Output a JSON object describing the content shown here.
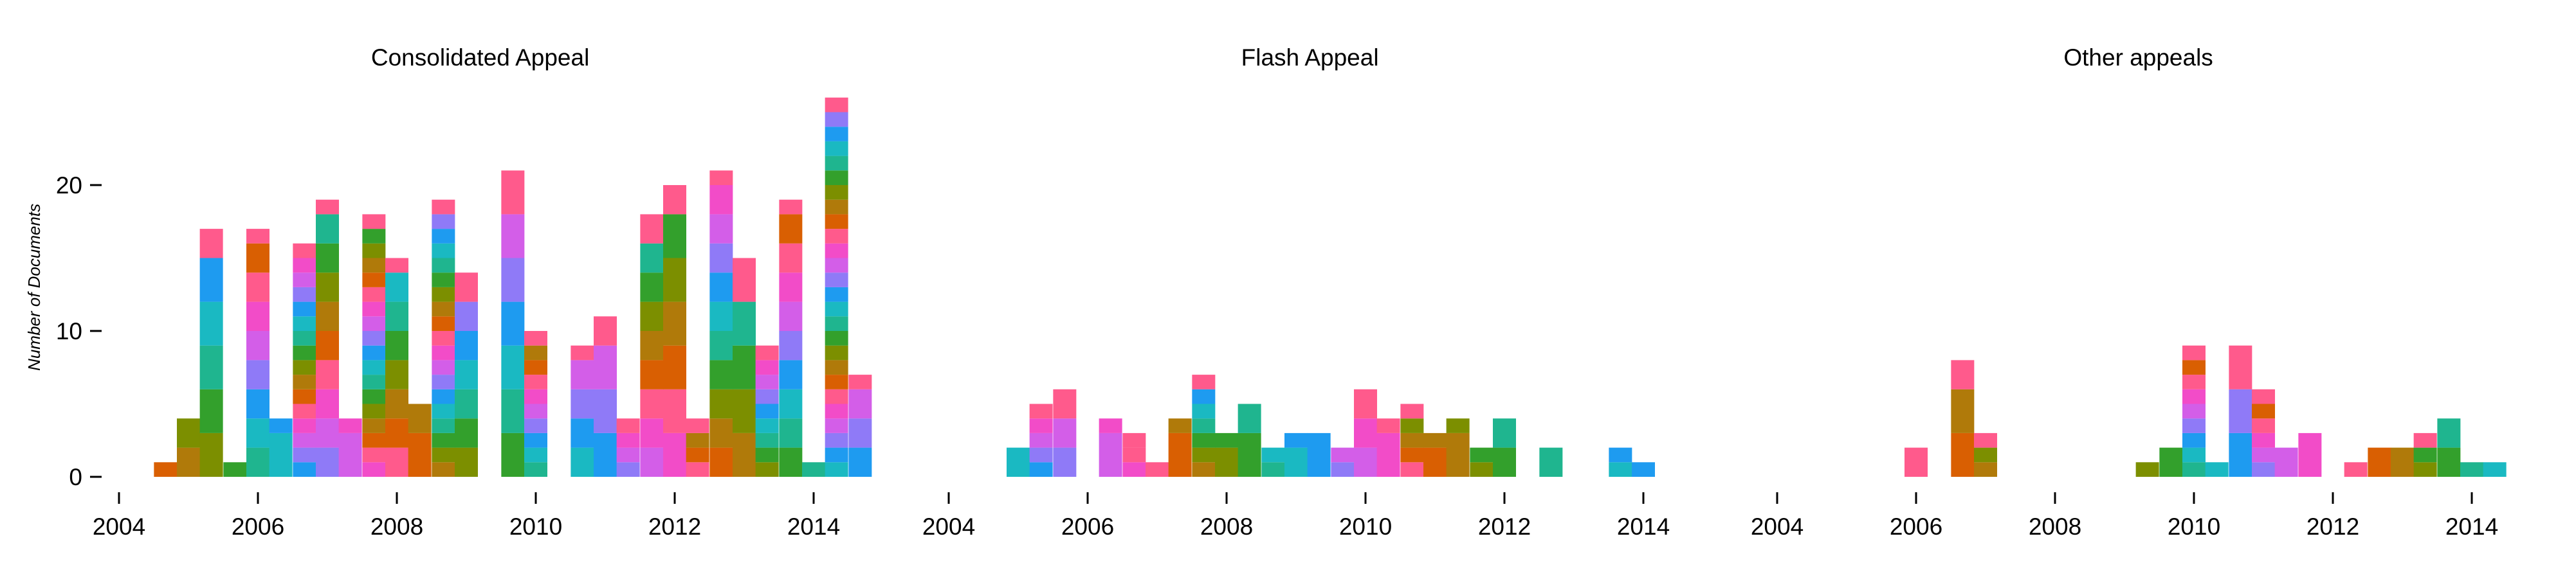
{
  "chart_data": {
    "type": "bar",
    "stacked": true,
    "ylabel": "Number of Documents",
    "ylim": [
      0,
      27
    ],
    "yticks": [
      0,
      10,
      20
    ],
    "xlim": [
      2004,
      2015
    ],
    "xticks": [
      2004,
      2006,
      2008,
      2010,
      2012,
      2014
    ],
    "bin_width_years": 0.3333,
    "grid": false,
    "segment_palette": [
      "#d95f02",
      "#b07a0a",
      "#7c8f00",
      "#33a02c",
      "#1fb58f",
      "#1ab9c2",
      "#1e9bf0",
      "#8f7af7",
      "#d35ee8",
      "#f24cc8",
      "#ff5a8c"
    ],
    "panels": [
      {
        "title": "Consolidated Appeal",
        "bins": [
          {
            "x": 2004.67,
            "total": 1
          },
          {
            "x": 2005.0,
            "total": 4
          },
          {
            "x": 2005.33,
            "total": 17
          },
          {
            "x": 2005.67,
            "total": 1
          },
          {
            "x": 2006.0,
            "total": 17
          },
          {
            "x": 2006.33,
            "total": 4
          },
          {
            "x": 2006.67,
            "total": 16
          },
          {
            "x": 2007.0,
            "total": 19
          },
          {
            "x": 2007.33,
            "total": 4
          },
          {
            "x": 2007.67,
            "total": 18
          },
          {
            "x": 2008.0,
            "total": 15
          },
          {
            "x": 2008.33,
            "total": 5
          },
          {
            "x": 2008.67,
            "total": 19
          },
          {
            "x": 2009.0,
            "total": 14
          },
          {
            "x": 2009.67,
            "total": 21
          },
          {
            "x": 2010.0,
            "total": 10
          },
          {
            "x": 2010.67,
            "total": 9
          },
          {
            "x": 2011.0,
            "total": 11
          },
          {
            "x": 2011.33,
            "total": 4
          },
          {
            "x": 2011.67,
            "total": 18
          },
          {
            "x": 2012.0,
            "total": 20
          },
          {
            "x": 2012.33,
            "total": 4
          },
          {
            "x": 2012.67,
            "total": 21
          },
          {
            "x": 2013.0,
            "total": 15
          },
          {
            "x": 2013.33,
            "total": 9
          },
          {
            "x": 2013.67,
            "total": 19
          },
          {
            "x": 2014.0,
            "total": 1
          },
          {
            "x": 2014.33,
            "total": 26
          },
          {
            "x": 2014.67,
            "total": 7
          }
        ]
      },
      {
        "title": "Flash Appeal",
        "bins": [
          {
            "x": 2005.0,
            "total": 2
          },
          {
            "x": 2005.33,
            "total": 5
          },
          {
            "x": 2005.67,
            "total": 6
          },
          {
            "x": 2006.33,
            "total": 4
          },
          {
            "x": 2006.67,
            "total": 3
          },
          {
            "x": 2007.0,
            "total": 1
          },
          {
            "x": 2007.33,
            "total": 4
          },
          {
            "x": 2007.67,
            "total": 7
          },
          {
            "x": 2008.0,
            "total": 3
          },
          {
            "x": 2008.33,
            "total": 5
          },
          {
            "x": 2008.67,
            "total": 2
          },
          {
            "x": 2009.0,
            "total": 3
          },
          {
            "x": 2009.33,
            "total": 3
          },
          {
            "x": 2009.67,
            "total": 2
          },
          {
            "x": 2010.0,
            "total": 6
          },
          {
            "x": 2010.33,
            "total": 4
          },
          {
            "x": 2010.67,
            "total": 5
          },
          {
            "x": 2011.0,
            "total": 3
          },
          {
            "x": 2011.33,
            "total": 4
          },
          {
            "x": 2011.67,
            "total": 2
          },
          {
            "x": 2012.0,
            "total": 4
          },
          {
            "x": 2012.67,
            "total": 2
          },
          {
            "x": 2013.67,
            "total": 2
          },
          {
            "x": 2014.0,
            "total": 1
          }
        ]
      },
      {
        "title": "Other appeals",
        "bins": [
          {
            "x": 2006.0,
            "total": 2
          },
          {
            "x": 2006.67,
            "total": 8
          },
          {
            "x": 2007.0,
            "total": 3
          },
          {
            "x": 2009.33,
            "total": 1
          },
          {
            "x": 2009.67,
            "total": 2
          },
          {
            "x": 2010.0,
            "total": 9
          },
          {
            "x": 2010.33,
            "total": 1
          },
          {
            "x": 2010.67,
            "total": 9
          },
          {
            "x": 2011.0,
            "total": 6
          },
          {
            "x": 2011.33,
            "total": 2
          },
          {
            "x": 2011.67,
            "total": 3
          },
          {
            "x": 2012.33,
            "total": 1
          },
          {
            "x": 2012.67,
            "total": 2
          },
          {
            "x": 2013.0,
            "total": 2
          },
          {
            "x": 2013.33,
            "total": 3
          },
          {
            "x": 2013.67,
            "total": 4
          },
          {
            "x": 2014.0,
            "total": 1
          },
          {
            "x": 2014.33,
            "total": 1
          }
        ]
      }
    ]
  }
}
